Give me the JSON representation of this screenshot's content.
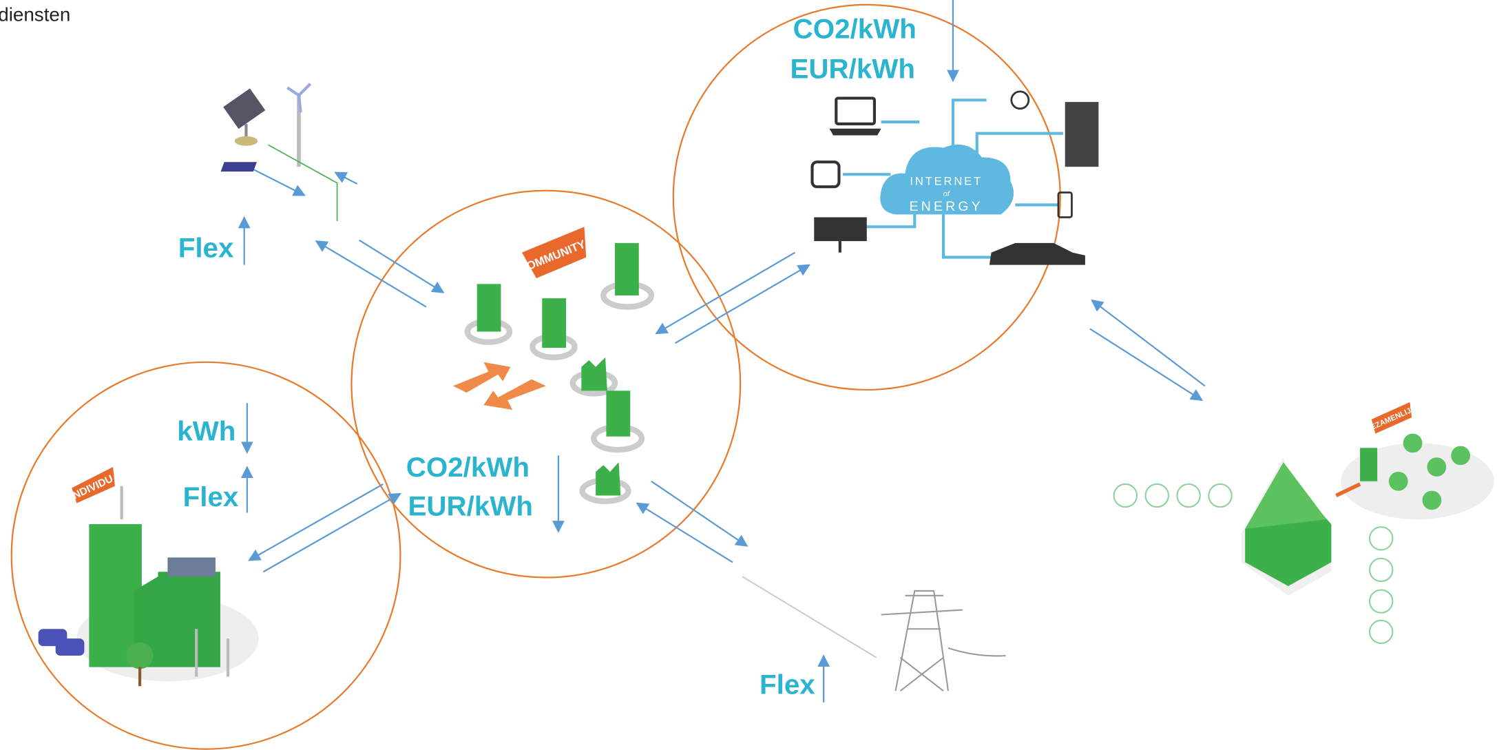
{
  "header": {
    "title": "diensten"
  },
  "nodes": [
    {
      "label": "COMMUNITY"
    },
    {
      "label": "INDIVIDU"
    },
    {
      "label": "INTERNET",
      "sub": "of",
      "label2": "ENERGY"
    },
    {
      "label": "GEZAMENLIJK"
    }
  ],
  "labels": [
    {
      "text": "CO2/kWh"
    },
    {
      "text": "EUR/kWh"
    },
    {
      "text": "Flex"
    },
    {
      "text": "kWh"
    },
    {
      "text": "Flex"
    },
    {
      "text": "CO2/kWh"
    },
    {
      "text": "EUR/kWh"
    },
    {
      "text": "Flex"
    }
  ]
}
